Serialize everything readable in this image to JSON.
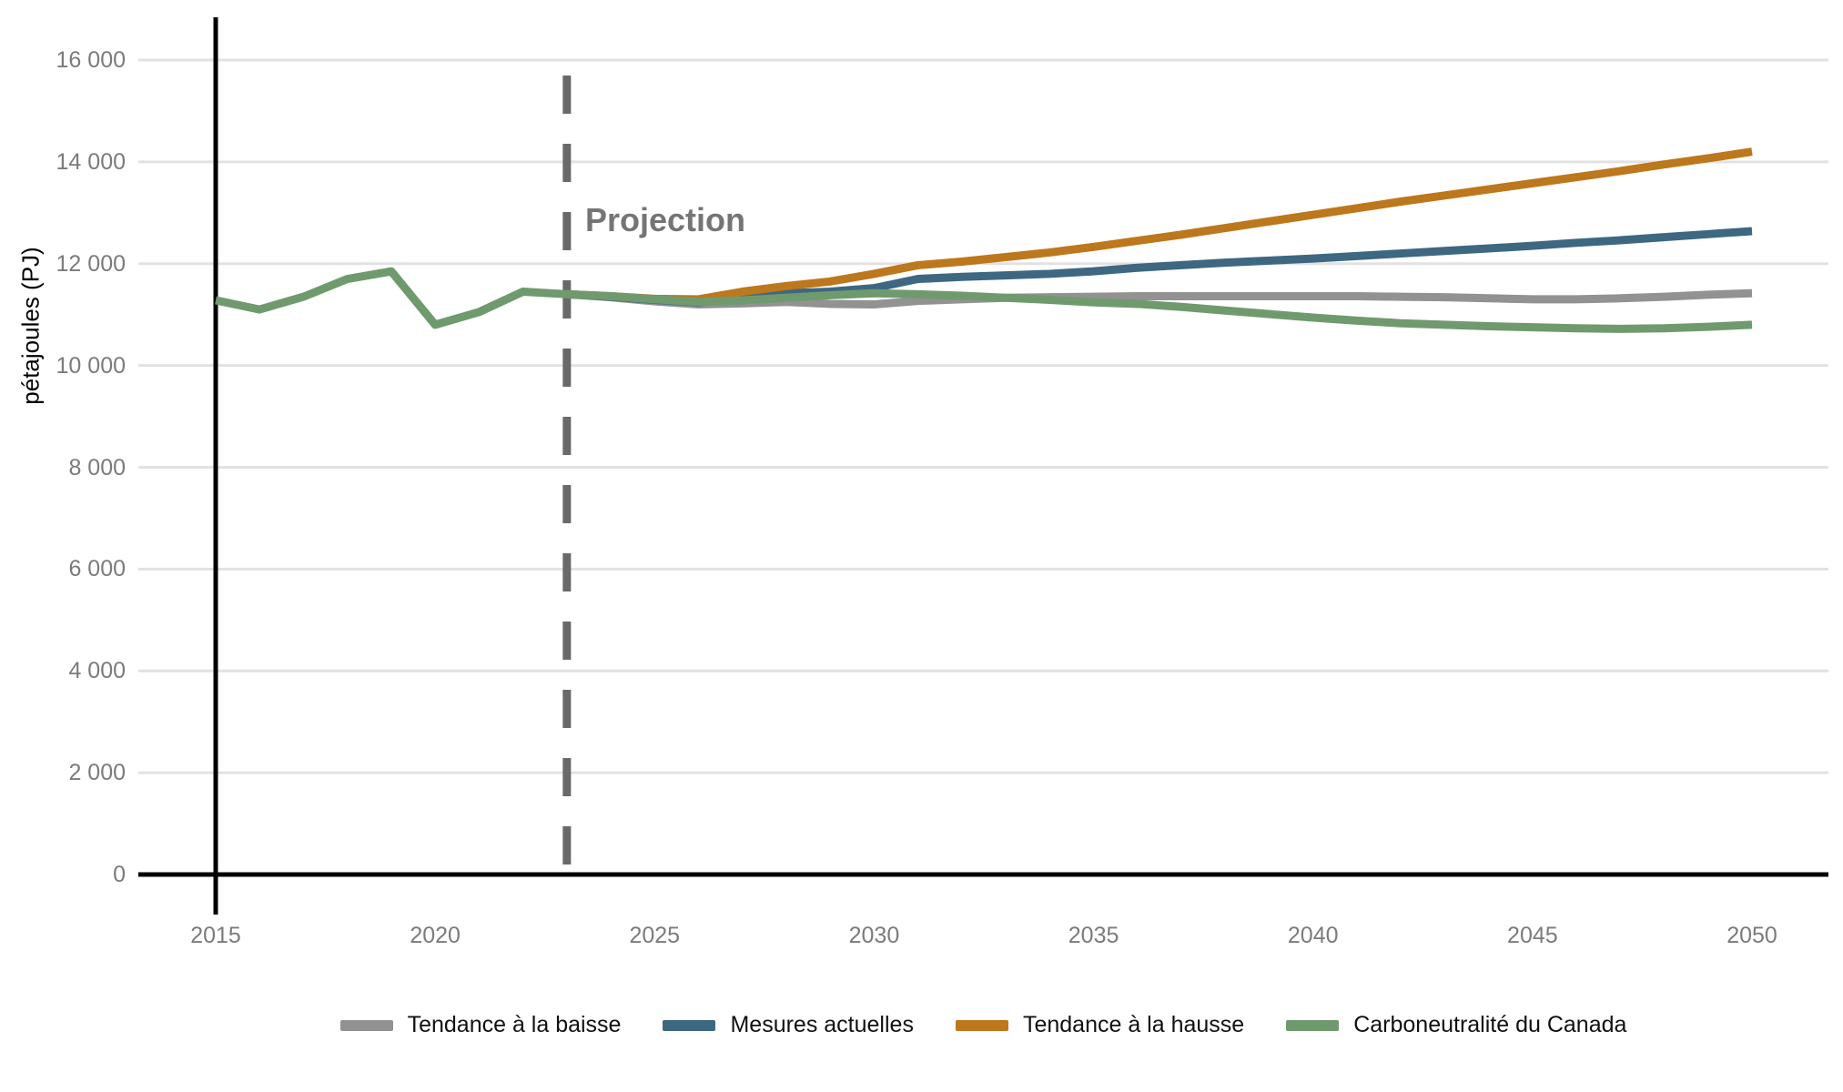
{
  "chart": {
    "ylabel": "pétajoules (PJ)",
    "projection_label": "Projection"
  },
  "chart_data": {
    "type": "line",
    "title": "",
    "xlabel": "",
    "ylabel": "pétajoules (PJ)",
    "grid": "horizontal",
    "legend_position": "bottom",
    "xlim": [
      2013.2,
      2052.1
    ],
    "ylim": [
      0,
      16750
    ],
    "annotation": {
      "label": "Projection",
      "x": 2023
    },
    "projection_divider_year": 2023,
    "history_axis_year": 2015,
    "x_ticks": [
      {
        "value": 2015,
        "label": "2015"
      },
      {
        "value": 2020,
        "label": "2020"
      },
      {
        "value": 2025,
        "label": "2025"
      },
      {
        "value": 2030,
        "label": "2030"
      },
      {
        "value": 2035,
        "label": "2035"
      },
      {
        "value": 2040,
        "label": "2040"
      },
      {
        "value": 2045,
        "label": "2045"
      },
      {
        "value": 2050,
        "label": "2050"
      }
    ],
    "y_ticks": [
      {
        "value": 0,
        "label": "0"
      },
      {
        "value": 2000,
        "label": "2 000"
      },
      {
        "value": 4000,
        "label": "4 000"
      },
      {
        "value": 6000,
        "label": "6 000"
      },
      {
        "value": 8000,
        "label": "8 000"
      },
      {
        "value": 10000,
        "label": "10 000"
      },
      {
        "value": 12000,
        "label": "12 000"
      },
      {
        "value": 14000,
        "label": "14 000"
      },
      {
        "value": 16000,
        "label": "16 000"
      }
    ],
    "series": [
      {
        "name": "Tendance à la baisse",
        "color": "#929292",
        "x": [
          2023,
          2024,
          2025,
          2026,
          2027,
          2028,
          2029,
          2030,
          2031,
          2032,
          2033,
          2034,
          2035,
          2036,
          2037,
          2038,
          2039,
          2040,
          2041,
          2042,
          2043,
          2044,
          2045,
          2046,
          2047,
          2048,
          2049,
          2050
        ],
        "values": [
          11400,
          11340,
          11260,
          11200,
          11220,
          11250,
          11210,
          11200,
          11270,
          11300,
          11330,
          11340,
          11350,
          11360,
          11360,
          11360,
          11360,
          11360,
          11360,
          11350,
          11340,
          11320,
          11300,
          11300,
          11320,
          11350,
          11390,
          11420
        ]
      },
      {
        "name": "Mesures actuelles",
        "color": "#3e6781",
        "x": [
          2023,
          2024,
          2025,
          2026,
          2027,
          2028,
          2029,
          2030,
          2031,
          2032,
          2033,
          2034,
          2035,
          2036,
          2037,
          2038,
          2039,
          2040,
          2041,
          2042,
          2043,
          2044,
          2045,
          2046,
          2047,
          2048,
          2049,
          2050
        ],
        "values": [
          11400,
          11350,
          11290,
          11240,
          11330,
          11420,
          11450,
          11520,
          11700,
          11740,
          11770,
          11800,
          11850,
          11920,
          11970,
          12020,
          12060,
          12100,
          12150,
          12200,
          12250,
          12300,
          12350,
          12410,
          12460,
          12520,
          12580,
          12640
        ]
      },
      {
        "name": "Tendance à la hausse",
        "color": "#bd771c",
        "x": [
          2023,
          2024,
          2025,
          2026,
          2027,
          2028,
          2029,
          2030,
          2031,
          2032,
          2033,
          2034,
          2035,
          2036,
          2037,
          2038,
          2039,
          2040,
          2041,
          2042,
          2043,
          2044,
          2045,
          2046,
          2047,
          2048,
          2049,
          2050
        ],
        "values": [
          11400,
          11360,
          11310,
          11300,
          11450,
          11560,
          11650,
          11800,
          11970,
          12040,
          12130,
          12220,
          12330,
          12450,
          12570,
          12700,
          12830,
          12960,
          13090,
          13220,
          13340,
          13460,
          13580,
          13700,
          13820,
          13950,
          14070,
          14200
        ]
      },
      {
        "name": "Carboneutralité du Canada",
        "color": "#6f9a6e",
        "x": [
          2015,
          2016,
          2017,
          2018,
          2019,
          2020,
          2021,
          2022,
          2023,
          2024,
          2025,
          2026,
          2027,
          2028,
          2029,
          2030,
          2031,
          2032,
          2033,
          2034,
          2035,
          2036,
          2037,
          2038,
          2039,
          2040,
          2041,
          2042,
          2043,
          2044,
          2045,
          2046,
          2047,
          2048,
          2049,
          2050
        ],
        "values": [
          11280,
          11100,
          11350,
          11700,
          11850,
          10800,
          11050,
          11450,
          11400,
          11360,
          11300,
          11250,
          11280,
          11330,
          11380,
          11420,
          11400,
          11370,
          11330,
          11290,
          11240,
          11210,
          11150,
          11080,
          11010,
          10940,
          10880,
          10830,
          10800,
          10770,
          10750,
          10730,
          10720,
          10730,
          10760,
          10800
        ]
      }
    ]
  }
}
